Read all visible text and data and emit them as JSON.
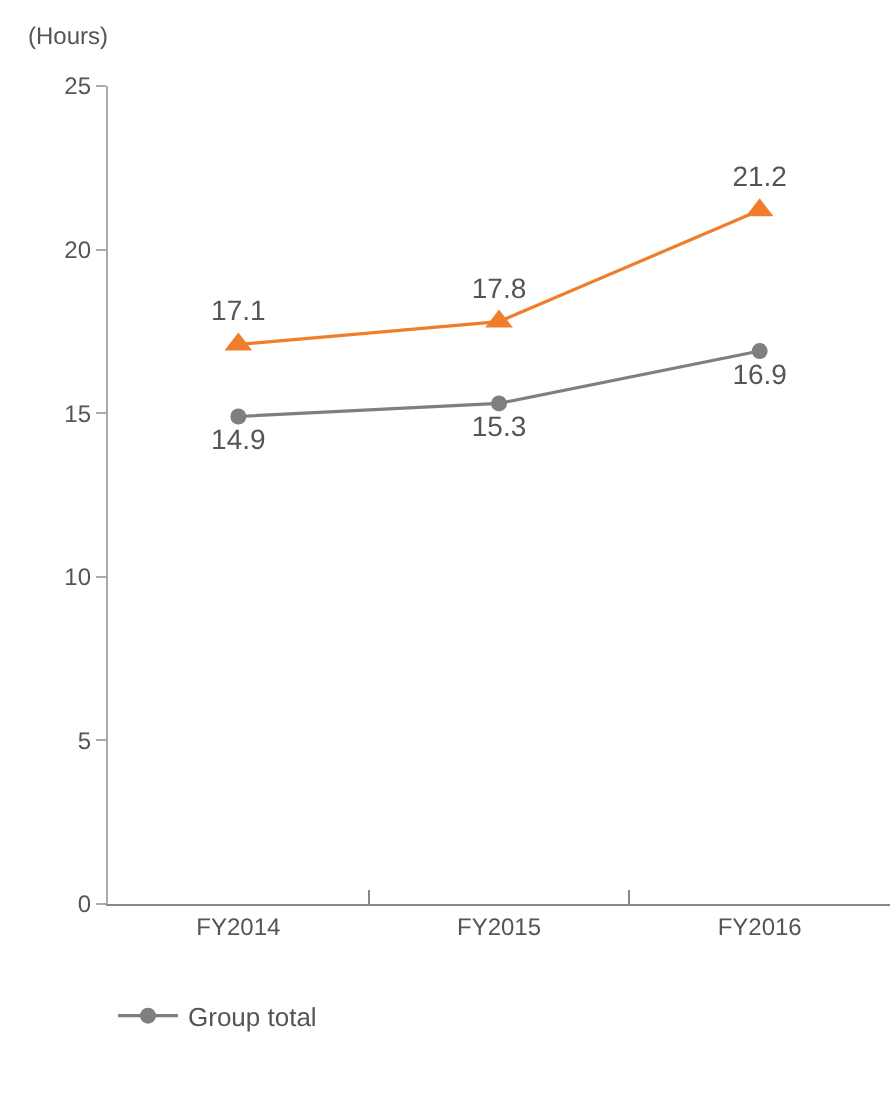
{
  "chart_data": {
    "type": "line",
    "ylabel": "(Hours)",
    "categories": [
      "FY2014",
      "FY2015",
      "FY2016"
    ],
    "series": [
      {
        "color": "#f07d2a",
        "values": [
          17.1,
          17.8,
          21.2
        ],
        "marker": "triangle"
      },
      {
        "name": "Group total",
        "color": "#7f7f7f",
        "values": [
          14.9,
          15.3,
          16.9
        ],
        "marker": "circle"
      }
    ],
    "ylim": [
      0,
      25
    ],
    "yticks": [
      0,
      5,
      10,
      15,
      20,
      25
    ],
    "grid": false,
    "data_labels": true,
    "legend": "bottom left"
  }
}
